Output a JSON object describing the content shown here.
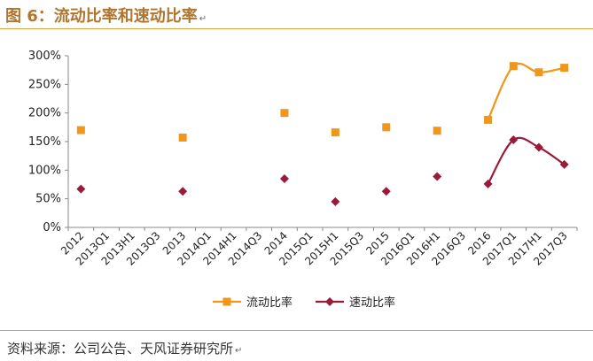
{
  "title": "图 6：流动比率和速动比率",
  "return_mark": "↵",
  "source": "资料来源：公司公告、天风证券研究所",
  "colors": {
    "current_ratio": "#f0961a",
    "quick_ratio": "#9b1a3a",
    "accent": "#d9a441",
    "title": "#b0752e"
  },
  "chart_data": {
    "type": "line",
    "categories": [
      "2012",
      "2013Q1",
      "2013H1",
      "2013Q3",
      "2013",
      "2014Q1",
      "2014H1",
      "2014Q3",
      "2014",
      "2015Q1",
      "2015H1",
      "2015Q3",
      "2015",
      "2016Q1",
      "2016H1",
      "2016Q3",
      "2016",
      "2017Q1",
      "2017H1",
      "2017Q3"
    ],
    "series": [
      {
        "name": "流动比率",
        "marker": "square",
        "values": [
          170,
          null,
          null,
          null,
          157,
          null,
          null,
          null,
          200,
          null,
          166,
          null,
          175,
          null,
          169,
          null,
          188,
          282,
          271,
          279
        ],
        "connected_from_index": 16
      },
      {
        "name": "速动比率",
        "marker": "diamond",
        "values": [
          67,
          null,
          null,
          null,
          63,
          null,
          null,
          null,
          85,
          null,
          45,
          null,
          63,
          null,
          89,
          null,
          76,
          153,
          140,
          110
        ],
        "connected_from_index": 16
      }
    ],
    "ylim": [
      0,
      300
    ],
    "yticks": [
      0,
      50,
      100,
      150,
      200,
      250,
      300
    ],
    "ytick_labels": [
      "0%",
      "50%",
      "100%",
      "150%",
      "200%",
      "250%",
      "300%"
    ],
    "legend": "bottom",
    "grid": false
  }
}
